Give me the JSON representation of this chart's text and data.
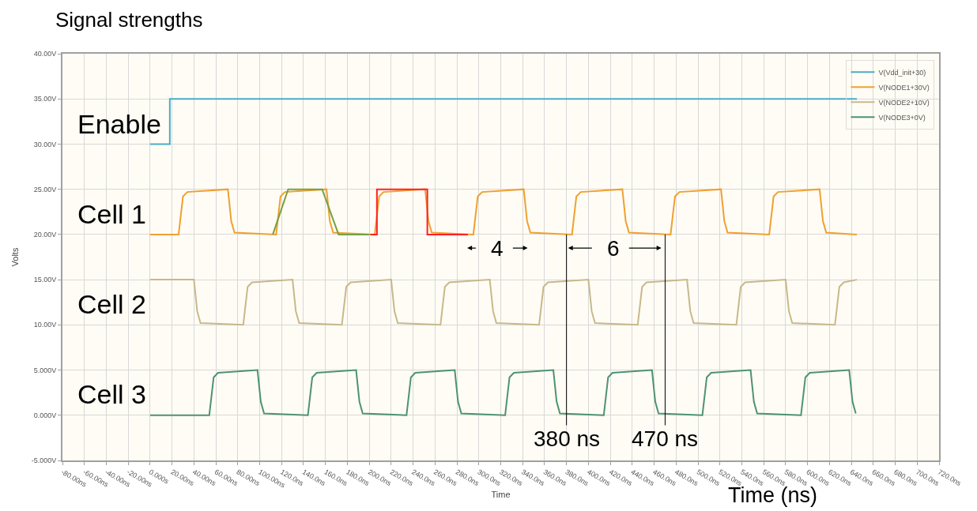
{
  "chart_data": {
    "type": "line",
    "title": "Signal strengths",
    "xlabel": "Time",
    "ylabel": "Volts",
    "xlim": [
      -80,
      720
    ],
    "xticks": [
      {
        "value": -80,
        "label": "-80.00ns"
      },
      {
        "value": -60,
        "label": "-60.00ns"
      },
      {
        "value": -40,
        "label": "-40.00ns"
      },
      {
        "value": -20,
        "label": "-20.00ns"
      },
      {
        "value": 0,
        "label": "0.000s"
      },
      {
        "value": 20,
        "label": "20.00ns"
      },
      {
        "value": 40,
        "label": "40.00ns"
      },
      {
        "value": 60,
        "label": "60.00ns"
      },
      {
        "value": 80,
        "label": "80.00ns"
      },
      {
        "value": 100,
        "label": "100.00ns"
      },
      {
        "value": 120,
        "label": "120.0ns"
      },
      {
        "value": 140,
        "label": "140.0ns"
      },
      {
        "value": 160,
        "label": "160.0ns"
      },
      {
        "value": 180,
        "label": "180.0ns"
      },
      {
        "value": 200,
        "label": "200.0ns"
      },
      {
        "value": 220,
        "label": "220.0ns"
      },
      {
        "value": 240,
        "label": "240.0ns"
      },
      {
        "value": 260,
        "label": "260.0ns"
      },
      {
        "value": 280,
        "label": "280.0ns"
      },
      {
        "value": 300,
        "label": "300.0ns"
      },
      {
        "value": 320,
        "label": "320.0ns"
      },
      {
        "value": 340,
        "label": "340.0ns"
      },
      {
        "value": 360,
        "label": "360.0ns"
      },
      {
        "value": 380,
        "label": "380.0ns"
      },
      {
        "value": 400,
        "label": "400.0ns"
      },
      {
        "value": 420,
        "label": "420.0ns"
      },
      {
        "value": 440,
        "label": "440.0ns"
      },
      {
        "value": 460,
        "label": "460.0ns"
      },
      {
        "value": 480,
        "label": "480.0ns"
      },
      {
        "value": 500,
        "label": "500.0ns"
      },
      {
        "value": 520,
        "label": "520.0ns"
      },
      {
        "value": 540,
        "label": "540.0ns"
      },
      {
        "value": 560,
        "label": "560.0ns"
      },
      {
        "value": 580,
        "label": "580.0ns"
      },
      {
        "value": 600,
        "label": "600.0ns"
      },
      {
        "value": 620,
        "label": "620.0ns"
      },
      {
        "value": 640,
        "label": "640.0ns"
      },
      {
        "value": 660,
        "label": "660.0ns"
      },
      {
        "value": 680,
        "label": "680.0ns"
      },
      {
        "value": 700,
        "label": "700.0ns"
      },
      {
        "value": 720,
        "label": "720.0ns"
      }
    ],
    "ylim": [
      -5,
      40
    ],
    "yticks": [
      {
        "value": -5,
        "label": "-5.000V"
      },
      {
        "value": 0,
        "label": "0.000V"
      },
      {
        "value": 5,
        "label": "5.000V"
      },
      {
        "value": 10,
        "label": "10.00V"
      },
      {
        "value": 15,
        "label": "15.00V"
      },
      {
        "value": 20,
        "label": "20.00V"
      },
      {
        "value": 25,
        "label": "25.00V"
      },
      {
        "value": 30,
        "label": "30.00V"
      },
      {
        "value": 35,
        "label": "35.00V"
      },
      {
        "value": 40,
        "label": "40.00V"
      }
    ],
    "grid": true,
    "legend": "top right",
    "marker": "none",
    "line_style": "solid",
    "series": [
      {
        "name": "V(Vdd_init+30)",
        "color": "#4bacc6",
        "x": [
          0,
          18,
          18,
          645
        ],
        "values": [
          30,
          30,
          35,
          35
        ]
      },
      {
        "name": "V(NODE1+30V)",
        "color": "#f0a030",
        "x": [
          0,
          26,
          30,
          34,
          71,
          74,
          77,
          115,
          119,
          123,
          161,
          164,
          167,
          205,
          209,
          213,
          251,
          254,
          257,
          295,
          299,
          303,
          341,
          344,
          347,
          385,
          389,
          393,
          431,
          434,
          437,
          475,
          479,
          483,
          521,
          524,
          527,
          565,
          569,
          573,
          611,
          614,
          617,
          645
        ],
        "values": [
          20,
          20,
          24.2,
          24.7,
          25,
          21.5,
          20.2,
          20,
          24.2,
          24.7,
          25,
          21.5,
          20.2,
          20,
          24.2,
          24.7,
          25,
          21.5,
          20.2,
          20,
          24.2,
          24.7,
          25,
          21.5,
          20.2,
          20,
          24.2,
          24.7,
          25,
          21.5,
          20.2,
          20,
          24.2,
          24.7,
          25,
          21.5,
          20.2,
          20,
          24.2,
          24.7,
          25,
          21.5,
          20.2,
          20
        ]
      },
      {
        "name": "V(NODE2+10V)",
        "color": "#c8b88a",
        "x": [
          0,
          40,
          43,
          46,
          85,
          89,
          93,
          130,
          133,
          136,
          175,
          179,
          183,
          220,
          223,
          226,
          265,
          269,
          273,
          310,
          313,
          316,
          355,
          359,
          363,
          400,
          403,
          406,
          445,
          449,
          453,
          490,
          493,
          496,
          535,
          539,
          543,
          580,
          583,
          586,
          625,
          629,
          633,
          645
        ],
        "values": [
          15,
          15,
          11.5,
          10.2,
          10,
          14.2,
          14.7,
          15,
          11.5,
          10.2,
          10,
          14.2,
          14.7,
          15,
          11.5,
          10.2,
          10,
          14.2,
          14.7,
          15,
          11.5,
          10.2,
          10,
          14.2,
          14.7,
          15,
          11.5,
          10.2,
          10,
          14.2,
          14.7,
          15,
          11.5,
          10.2,
          10,
          14.2,
          14.7,
          15,
          11.5,
          10.2,
          10,
          14.2,
          14.7,
          15
        ]
      },
      {
        "name": "V(NODE3+0V)",
        "color": "#4e9273",
        "x": [
          0,
          54,
          58,
          62,
          98,
          101,
          104,
          144,
          148,
          152,
          188,
          191,
          194,
          234,
          238,
          242,
          278,
          281,
          284,
          324,
          328,
          332,
          368,
          371,
          374,
          414,
          418,
          422,
          458,
          461,
          464,
          504,
          508,
          512,
          548,
          551,
          554,
          594,
          598,
          602,
          638,
          641,
          644
        ],
        "values": [
          0,
          0,
          4.2,
          4.7,
          5,
          1.5,
          0.2,
          0,
          4.2,
          4.7,
          5,
          1.5,
          0.2,
          0,
          4.2,
          4.7,
          5,
          1.5,
          0.2,
          0,
          4.2,
          4.7,
          5,
          1.5,
          0.2,
          0,
          4.2,
          4.7,
          5,
          1.5,
          0.2,
          0,
          4.2,
          4.7,
          5,
          1.5,
          0.2,
          0,
          4.2,
          4.7,
          5,
          1.5,
          0.2
        ]
      },
      {
        "color": "#77a043",
        "x": [
          112,
          126,
          157,
          172,
          200
        ],
        "values": [
          20,
          25,
          25,
          20,
          20
        ]
      },
      {
        "color": "#ff2020",
        "x": [
          201,
          207,
          207,
          253,
          253,
          290
        ],
        "values": [
          20,
          20,
          25,
          25,
          20,
          20
        ]
      }
    ],
    "annotations": [
      "Enable",
      "Cell 1",
      "Cell 2",
      "Cell 3",
      "4",
      "6",
      "Time (ns)",
      {
        "text": "380 ns",
        "x": 380,
        "y": 20
      },
      {
        "text": "470 ns",
        "x": 470,
        "y": 20
      }
    ]
  }
}
